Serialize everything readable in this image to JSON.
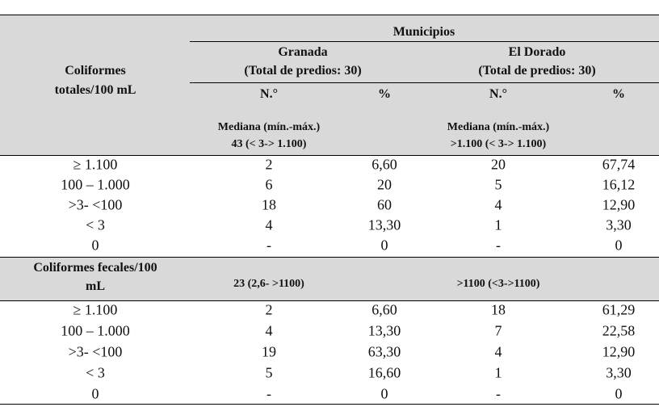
{
  "header": {
    "row_label": [
      "Coliformes",
      "totales/100 mL"
    ],
    "group_title": "Municipios",
    "municipalities": [
      {
        "name": "Granada",
        "total": "(Total de predios: 30)",
        "count_label": "N.°",
        "percent_label": "%",
        "median_label": "Mediana (mín.-máx.)",
        "median": "43 (< 3-> 1.100)"
      },
      {
        "name": "El Dorado",
        "total": "(Total de predios: 30)",
        "count_label": "N.°",
        "percent_label": "%",
        "median_label": "Mediana (mín.-máx.)",
        "median": ">1.100 (< 3-> 1.100)"
      }
    ]
  },
  "sections": [
    {
      "rows": [
        [
          "≥ 1.100",
          "2",
          "6,60",
          "20",
          "67,74"
        ],
        [
          "100 – 1.000",
          "6",
          "20",
          "5",
          "16,12"
        ],
        [
          ">3- <100",
          "18",
          "60",
          "4",
          "12,90"
        ],
        [
          "< 3",
          "4",
          "13,30",
          "1",
          "3,30"
        ],
        [
          "0",
          "-",
          "0",
          "-",
          "0"
        ]
      ]
    },
    {
      "title": [
        "Coliformes fecales/100",
        "mL"
      ],
      "medians": [
        "23 (2,6- >1100)",
        ">1100 (<3->1100)"
      ],
      "rows": [
        [
          "≥ 1.100",
          "2",
          "6,60",
          "18",
          "61,29"
        ],
        [
          "100 – 1.000",
          "4",
          "13,30",
          "7",
          "22,58"
        ],
        [
          ">3- <100",
          "19",
          "63,30",
          "4",
          "12,90"
        ],
        [
          "< 3",
          "5",
          "16,60",
          "1",
          "3,30"
        ],
        [
          "0",
          "-",
          "0",
          "-",
          "0"
        ]
      ]
    }
  ]
}
